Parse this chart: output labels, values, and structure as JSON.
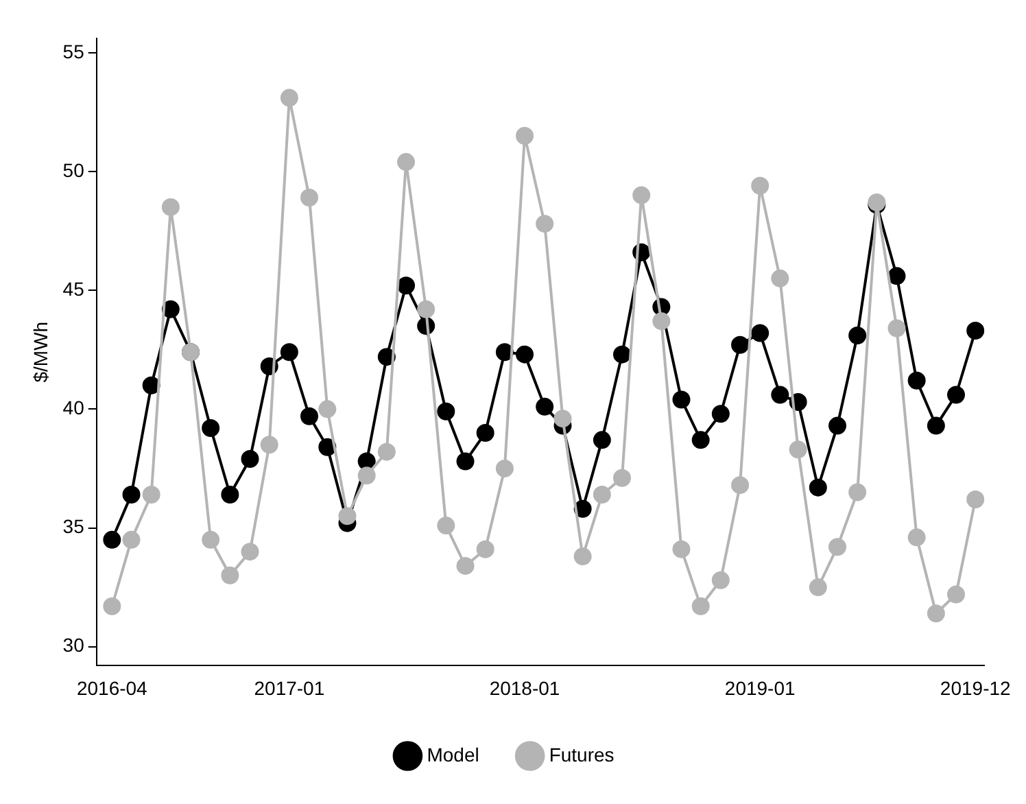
{
  "chart_data": {
    "type": "line",
    "ylabel": "$/MWh",
    "x": [
      "2016-04",
      "2016-05",
      "2016-06",
      "2016-07",
      "2016-08",
      "2016-09",
      "2016-10",
      "2016-11",
      "2016-12",
      "2017-01",
      "2017-02",
      "2017-03",
      "2017-04",
      "2017-05",
      "2017-06",
      "2017-07",
      "2017-08",
      "2017-09",
      "2017-10",
      "2017-11",
      "2017-12",
      "2018-01",
      "2018-02",
      "2018-03",
      "2018-04",
      "2018-05",
      "2018-06",
      "2018-07",
      "2018-08",
      "2018-09",
      "2018-10",
      "2018-11",
      "2018-12",
      "2019-01",
      "2019-02",
      "2019-03",
      "2019-04",
      "2019-05",
      "2019-06",
      "2019-07",
      "2019-08",
      "2019-09",
      "2019-10",
      "2019-11",
      "2019-12"
    ],
    "series": [
      {
        "name": "Model",
        "color": "#000000",
        "values": [
          34.5,
          36.4,
          41.0,
          44.2,
          42.4,
          39.2,
          36.4,
          37.9,
          41.8,
          42.4,
          39.7,
          38.4,
          35.2,
          37.8,
          42.2,
          45.2,
          43.5,
          39.9,
          37.8,
          39.0,
          42.4,
          42.3,
          40.1,
          39.3,
          35.8,
          38.7,
          42.3,
          46.6,
          44.3,
          40.4,
          38.7,
          39.8,
          42.7,
          43.2,
          40.6,
          40.3,
          36.7,
          39.3,
          43.1,
          48.6,
          45.6,
          41.2,
          39.3,
          40.6,
          43.3
        ]
      },
      {
        "name": "Futures",
        "color": "#b4b4b4",
        "values": [
          31.7,
          34.5,
          36.4,
          48.5,
          42.4,
          34.5,
          33.0,
          34.0,
          38.5,
          53.1,
          48.9,
          40.0,
          35.5,
          37.2,
          38.2,
          50.4,
          44.2,
          35.1,
          33.4,
          34.1,
          37.5,
          51.5,
          47.8,
          39.6,
          33.8,
          36.4,
          37.1,
          49.0,
          43.7,
          34.1,
          31.7,
          32.8,
          36.8,
          49.4,
          45.5,
          38.3,
          32.5,
          34.2,
          36.5,
          48.7,
          43.4,
          34.6,
          31.4,
          32.2,
          36.2
        ]
      }
    ],
    "xlim": [
      "2016-03-08",
      "2019-12-15"
    ],
    "xticks": [
      "2016-04",
      "2017-01",
      "2018-01",
      "2019-01",
      "2019-12"
    ],
    "ylim": [
      29.2,
      55.6
    ],
    "yticks": [
      30,
      35,
      40,
      45,
      50,
      55
    ],
    "grid": false,
    "legend": "bottom",
    "marker": "circle",
    "line_style": "solid"
  }
}
